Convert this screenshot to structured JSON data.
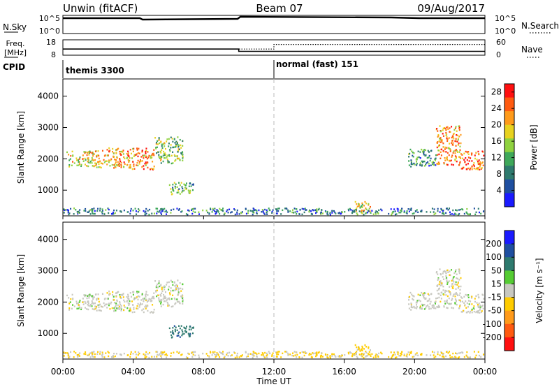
{
  "header": {
    "title": "Unwin (fitACF)",
    "beam": "Beam 07",
    "date": "09/Aug/2017"
  },
  "nsky_panel": {
    "left_label": "N.Sky",
    "left_ticks": [
      "10^5",
      "10^0"
    ],
    "right_ticks": [
      "10^5",
      "10^0"
    ],
    "right_label": "N.Search"
  },
  "freq_panel": {
    "left_label_1": "Freq.",
    "left_label_2": "[MHz]",
    "left_ticks": [
      "18",
      "8"
    ],
    "right_ticks": [
      "60",
      "0"
    ],
    "right_label": "Nave",
    "freq_levels": [
      {
        "t": 0,
        "v": 12
      },
      {
        "t": 10,
        "v": 12
      },
      {
        "t": 10,
        "v": 10.5
      },
      {
        "t": 24,
        "v": 10.5
      }
    ],
    "nave_levels": [
      {
        "t": 0,
        "v": 12
      },
      {
        "t": 12,
        "v": 12
      },
      {
        "t": 12,
        "v": 15
      },
      {
        "t": 24,
        "v": 15
      }
    ],
    "freq_range": [
      8,
      18
    ]
  },
  "cpid": {
    "label": "CPID",
    "segments": [
      {
        "start": 0,
        "text": "themis 3300"
      },
      {
        "start": 12,
        "text": "normal (fast) 151"
      }
    ]
  },
  "x_axis": {
    "title": "Time UT",
    "ticks": [
      "00:00",
      "04:00",
      "08:00",
      "12:00",
      "16:00",
      "20:00",
      "00:00"
    ],
    "tick_hours": [
      0,
      4,
      8,
      12,
      16,
      20,
      24
    ],
    "range": [
      0,
      24
    ]
  },
  "power_panel": {
    "ylabel": "Slant Range [km]",
    "yticks": [
      "4000",
      "3000",
      "2000",
      "1000"
    ],
    "ytick_values": [
      4000,
      3000,
      2000,
      1000
    ],
    "yrange": [
      180,
      4550
    ],
    "colorbar_label": "Power [dB]",
    "colorbar_ticks": [
      "28",
      "24",
      "20",
      "16",
      "12",
      "8",
      "4"
    ],
    "colorbar_tick_values": [
      28,
      24,
      20,
      16,
      12,
      8,
      4
    ],
    "colorbar_range": [
      0,
      30
    ],
    "colorbar_colors": [
      "#1a1aff",
      "#1f4fa0",
      "#2e7a6e",
      "#3fa85a",
      "#8fd23f",
      "#e8d21f",
      "#ff9a1a",
      "#ff5a10",
      "#ff1010"
    ]
  },
  "velocity_panel": {
    "ylabel": "Slant Range [km]",
    "yticks": [
      "4000",
      "3000",
      "2000",
      "1000"
    ],
    "ytick_values": [
      4000,
      3000,
      2000,
      1000
    ],
    "yrange": [
      180,
      4550
    ],
    "colorbar_label": "Velocity [m s⁻¹]",
    "colorbar_ticks": [
      "200",
      "100",
      "50",
      "15",
      "-15",
      "-50",
      "-100",
      "-200"
    ],
    "colorbar_colors": [
      "#1a1aff",
      "#1f4fa0",
      "#2e7a6e",
      "#55cc33",
      "#c8c8c0",
      "#ffcc00",
      "#ff9a1a",
      "#ff5a10",
      "#ff1010"
    ]
  },
  "chart_data": {
    "type": "heatmap",
    "xlabel": "Time UT",
    "ylabel": "Slant Range [km]",
    "xlim": [
      0,
      24
    ],
    "ylim": [
      180,
      4550
    ],
    "series": [
      {
        "name": "Power [dB]",
        "regions": [
          {
            "t0": 0.2,
            "t1": 1.8,
            "r0": 1750,
            "r1": 2250,
            "power": 18,
            "velocity": 0
          },
          {
            "t0": 1.8,
            "t1": 3.5,
            "r0": 1700,
            "r1": 2350,
            "power": 20,
            "velocity": 0
          },
          {
            "t0": 3.6,
            "t1": 5.2,
            "r0": 1650,
            "r1": 2350,
            "power": 22,
            "velocity": 0
          },
          {
            "t0": 5.2,
            "t1": 6.8,
            "r0": 1850,
            "r1": 2700,
            "power": 14,
            "velocity": 0
          },
          {
            "t0": 6.0,
            "t1": 7.4,
            "r0": 850,
            "r1": 1250,
            "power": 12,
            "velocity": 60
          },
          {
            "t0": 16.5,
            "t1": 17.5,
            "r0": 250,
            "r1": 650,
            "power": 18,
            "velocity": -30
          },
          {
            "t0": 19.6,
            "t1": 21.2,
            "r0": 1750,
            "r1": 2300,
            "power": 10,
            "velocity": 0
          },
          {
            "t0": 21.2,
            "t1": 22.6,
            "r0": 1800,
            "r1": 3050,
            "power": 22,
            "velocity": 0
          },
          {
            "t0": 22.6,
            "t1": 23.9,
            "r0": 1650,
            "r1": 2250,
            "power": 24,
            "velocity": 0
          },
          {
            "t0": 0.0,
            "t1": 24.0,
            "r0": 220,
            "r1": 420,
            "power": 8,
            "velocity": -20
          }
        ]
      }
    ]
  }
}
